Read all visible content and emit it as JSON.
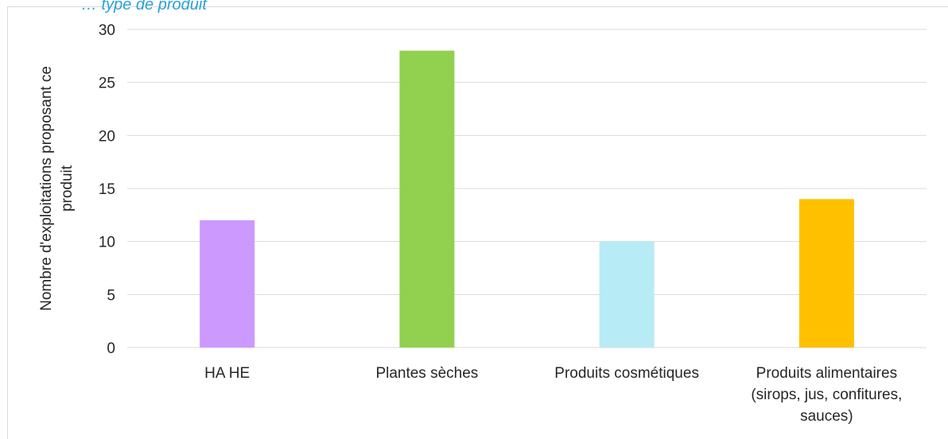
{
  "chart_data": {
    "type": "bar",
    "top_caption": "… type de produit",
    "ylabel": [
      "Nombre d'exploitations proposant ce",
      "produit"
    ],
    "ylim": [
      0,
      30
    ],
    "yticks": [
      0,
      5,
      10,
      15,
      20,
      25,
      30
    ],
    "grid": true,
    "categories": [
      [
        "HA HE"
      ],
      [
        "Plantes sèches"
      ],
      [
        "Produits cosmétiques"
      ],
      [
        "Produits alimentaires",
        "(sirops, jus, confitures,",
        "sauces)"
      ]
    ],
    "values": [
      12,
      28,
      10,
      14
    ],
    "colors": [
      "#cc99ff",
      "#92d050",
      "#b7ebf5",
      "#ffc000"
    ]
  }
}
